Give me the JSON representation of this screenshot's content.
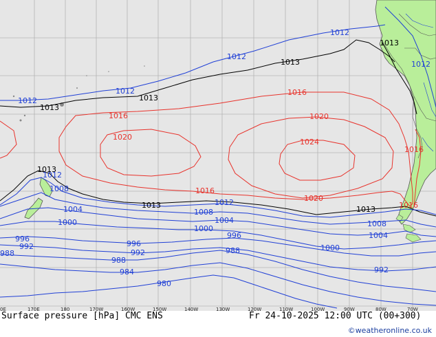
{
  "title": "Surface pressure [hPa] CMC ENS",
  "valid_time": "Fr 24-10-2025 12:00 UTC (00+300)",
  "credit": "©weatheronline.co.uk",
  "colors": {
    "ocean": "#e6e6e6",
    "land": "#b9ee9a",
    "grid": "#b4b4b4",
    "isobar_1013": "#000000",
    "isobar_high": "#e8322b",
    "isobar_low": "#1f3fd6",
    "coast": "#555555"
  },
  "longitude_ticks": [
    "0E",
    "170E",
    "180",
    "170W",
    "160W",
    "150W",
    "140W",
    "130W",
    "120W",
    "110W",
    "100W",
    "90W",
    "80W",
    "70W"
  ],
  "isobar_labels": {
    "l1012_a": "1012",
    "l1012_b": "1012",
    "l1012_c": "1012",
    "l1012_d": "1012",
    "l1012_e": "1012",
    "l1012_f": "1012",
    "l1012_g": "1012",
    "l1013_a": "1013",
    "l1013_b": "1013",
    "l1013_c": "1013",
    "l1013_d": "1013",
    "l1013_e": "1013",
    "l1013_f": "1013",
    "l1016_a": "1016",
    "l1016_b": "1016",
    "l1016_c": "1016",
    "l1016_d": "1016",
    "l1016_e": "1016",
    "l1020_a": "1020",
    "l1020_b": "1020",
    "l1020_c": "1020",
    "l1024": "1024",
    "l1008_a": "1008",
    "l1008_b": "1008",
    "l1008_c": "1008",
    "l1004_a": "1004",
    "l1004_b": "1004",
    "l1004_c": "1004",
    "l1000_a": "1000",
    "l1000_b": "1000",
    "l1000_c": "1000",
    "l996_a": "996",
    "l996_b": "996",
    "l996_c": "996",
    "l992_a": "992",
    "l992_b": "992",
    "l992_c": "992",
    "l988_a": "988",
    "l988_b": "988",
    "l988_c": "988",
    "l984": "984",
    "l980": "980"
  }
}
